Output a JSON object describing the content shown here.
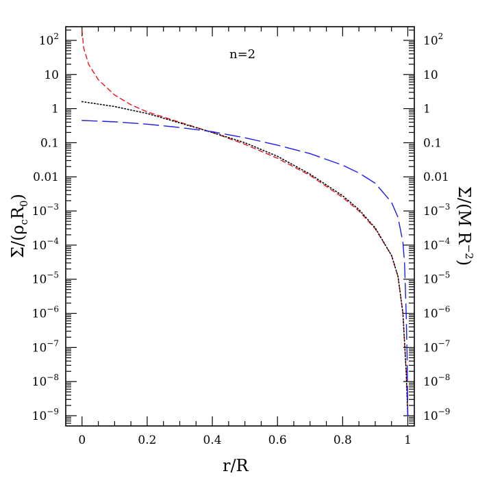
{
  "chart_data": {
    "type": "line",
    "annotation": "n=2",
    "xlabel": "r/R",
    "ylabel_left": "Σ/(ρ_c R_0)",
    "ylabel_right": "Σ/(M R^-2)",
    "xlim": [
      -0.05,
      1.02
    ],
    "ylim_log10": [
      -9.3,
      2.4
    ],
    "y_log_scale": true,
    "x_ticks": [
      {
        "value": 0,
        "label": "0"
      },
      {
        "value": 0.2,
        "label": "0.2"
      },
      {
        "value": 0.4,
        "label": "0.4"
      },
      {
        "value": 0.6,
        "label": "0.6"
      },
      {
        "value": 0.8,
        "label": "0.8"
      },
      {
        "value": 1,
        "label": "1"
      }
    ],
    "y_ticks_left": [
      {
        "exp": 2,
        "base": "10",
        "sup": "2"
      },
      {
        "exp": 1,
        "base": "10",
        "sup": ""
      },
      {
        "exp": 0,
        "base": "1",
        "sup": ""
      },
      {
        "exp": -1,
        "base": "0.1",
        "sup": ""
      },
      {
        "exp": -2,
        "base": "0.01",
        "sup": ""
      },
      {
        "exp": -3,
        "base": "10",
        "sup": "−3"
      },
      {
        "exp": -4,
        "base": "10",
        "sup": "−4"
      },
      {
        "exp": -5,
        "base": "10",
        "sup": "−5"
      },
      {
        "exp": -6,
        "base": "10",
        "sup": "−6"
      },
      {
        "exp": -7,
        "base": "10",
        "sup": "−7"
      },
      {
        "exp": -8,
        "base": "10",
        "sup": "−8"
      },
      {
        "exp": -9,
        "base": "10",
        "sup": "−9"
      }
    ],
    "y_ticks_right": [
      {
        "exp": 2,
        "base": "10",
        "sup": "2"
      },
      {
        "exp": 1,
        "base": "10",
        "sup": ""
      },
      {
        "exp": 0,
        "base": "1",
        "sup": ""
      },
      {
        "exp": -1,
        "base": "0.1",
        "sup": ""
      },
      {
        "exp": -2,
        "base": "0.01",
        "sup": ""
      },
      {
        "exp": -3,
        "base": "10",
        "sup": "−3"
      },
      {
        "exp": -4,
        "base": "10",
        "sup": "−4"
      },
      {
        "exp": -5,
        "base": "10",
        "sup": "−5"
      },
      {
        "exp": -6,
        "base": "10",
        "sup": "−6"
      },
      {
        "exp": -7,
        "base": "10",
        "sup": "−7"
      },
      {
        "exp": -8,
        "base": "10",
        "sup": "−8"
      },
      {
        "exp": -9,
        "base": "10",
        "sup": "−9"
      }
    ],
    "series": [
      {
        "color": "#e8141e",
        "dash": "short-dashed",
        "points": [
          [
            0.0,
            200
          ],
          [
            0.005,
            60
          ],
          [
            0.02,
            20
          ],
          [
            0.05,
            7
          ],
          [
            0.1,
            2.5
          ],
          [
            0.15,
            1.3
          ],
          [
            0.2,
            0.8
          ],
          [
            0.3,
            0.4
          ],
          [
            0.4,
            0.2
          ],
          [
            0.5,
            0.09
          ],
          [
            0.6,
            0.035
          ],
          [
            0.7,
            0.011
          ],
          [
            0.8,
            0.0025
          ],
          [
            0.85,
            0.001
          ],
          [
            0.9,
            0.0003
          ],
          [
            0.95,
            5e-05
          ],
          [
            0.97,
            1.2e-05
          ],
          [
            0.985,
            1e-06
          ],
          [
            0.995,
            2e-08
          ],
          [
            1.0,
            1e-09
          ]
        ]
      },
      {
        "color": "#000000",
        "dash": "dotted",
        "points": [
          [
            0.0,
            1.6
          ],
          [
            0.1,
            1.15
          ],
          [
            0.2,
            0.72
          ],
          [
            0.3,
            0.38
          ],
          [
            0.4,
            0.2
          ],
          [
            0.5,
            0.1
          ],
          [
            0.6,
            0.04
          ],
          [
            0.7,
            0.012
          ],
          [
            0.8,
            0.0028
          ],
          [
            0.85,
            0.0011
          ],
          [
            0.9,
            0.00032
          ],
          [
            0.95,
            5e-05
          ],
          [
            0.97,
            1.2e-05
          ],
          [
            0.985,
            1e-06
          ],
          [
            0.995,
            2e-08
          ],
          [
            1.0,
            1e-09
          ]
        ]
      },
      {
        "color": "#1a1aee",
        "dash": "long-dashed",
        "points": [
          [
            0.0,
            0.45
          ],
          [
            0.1,
            0.41
          ],
          [
            0.2,
            0.35
          ],
          [
            0.3,
            0.28
          ],
          [
            0.4,
            0.21
          ],
          [
            0.5,
            0.14
          ],
          [
            0.6,
            0.085
          ],
          [
            0.7,
            0.048
          ],
          [
            0.8,
            0.022
          ],
          [
            0.85,
            0.013
          ],
          [
            0.9,
            0.0065
          ],
          [
            0.95,
            0.0018
          ],
          [
            0.97,
            0.00065
          ],
          [
            0.985,
            0.00012
          ],
          [
            0.99,
            3e-05
          ],
          [
            0.995,
            1e-06
          ],
          [
            0.998,
            5e-08
          ],
          [
            1.0,
            1e-09
          ]
        ]
      }
    ]
  }
}
